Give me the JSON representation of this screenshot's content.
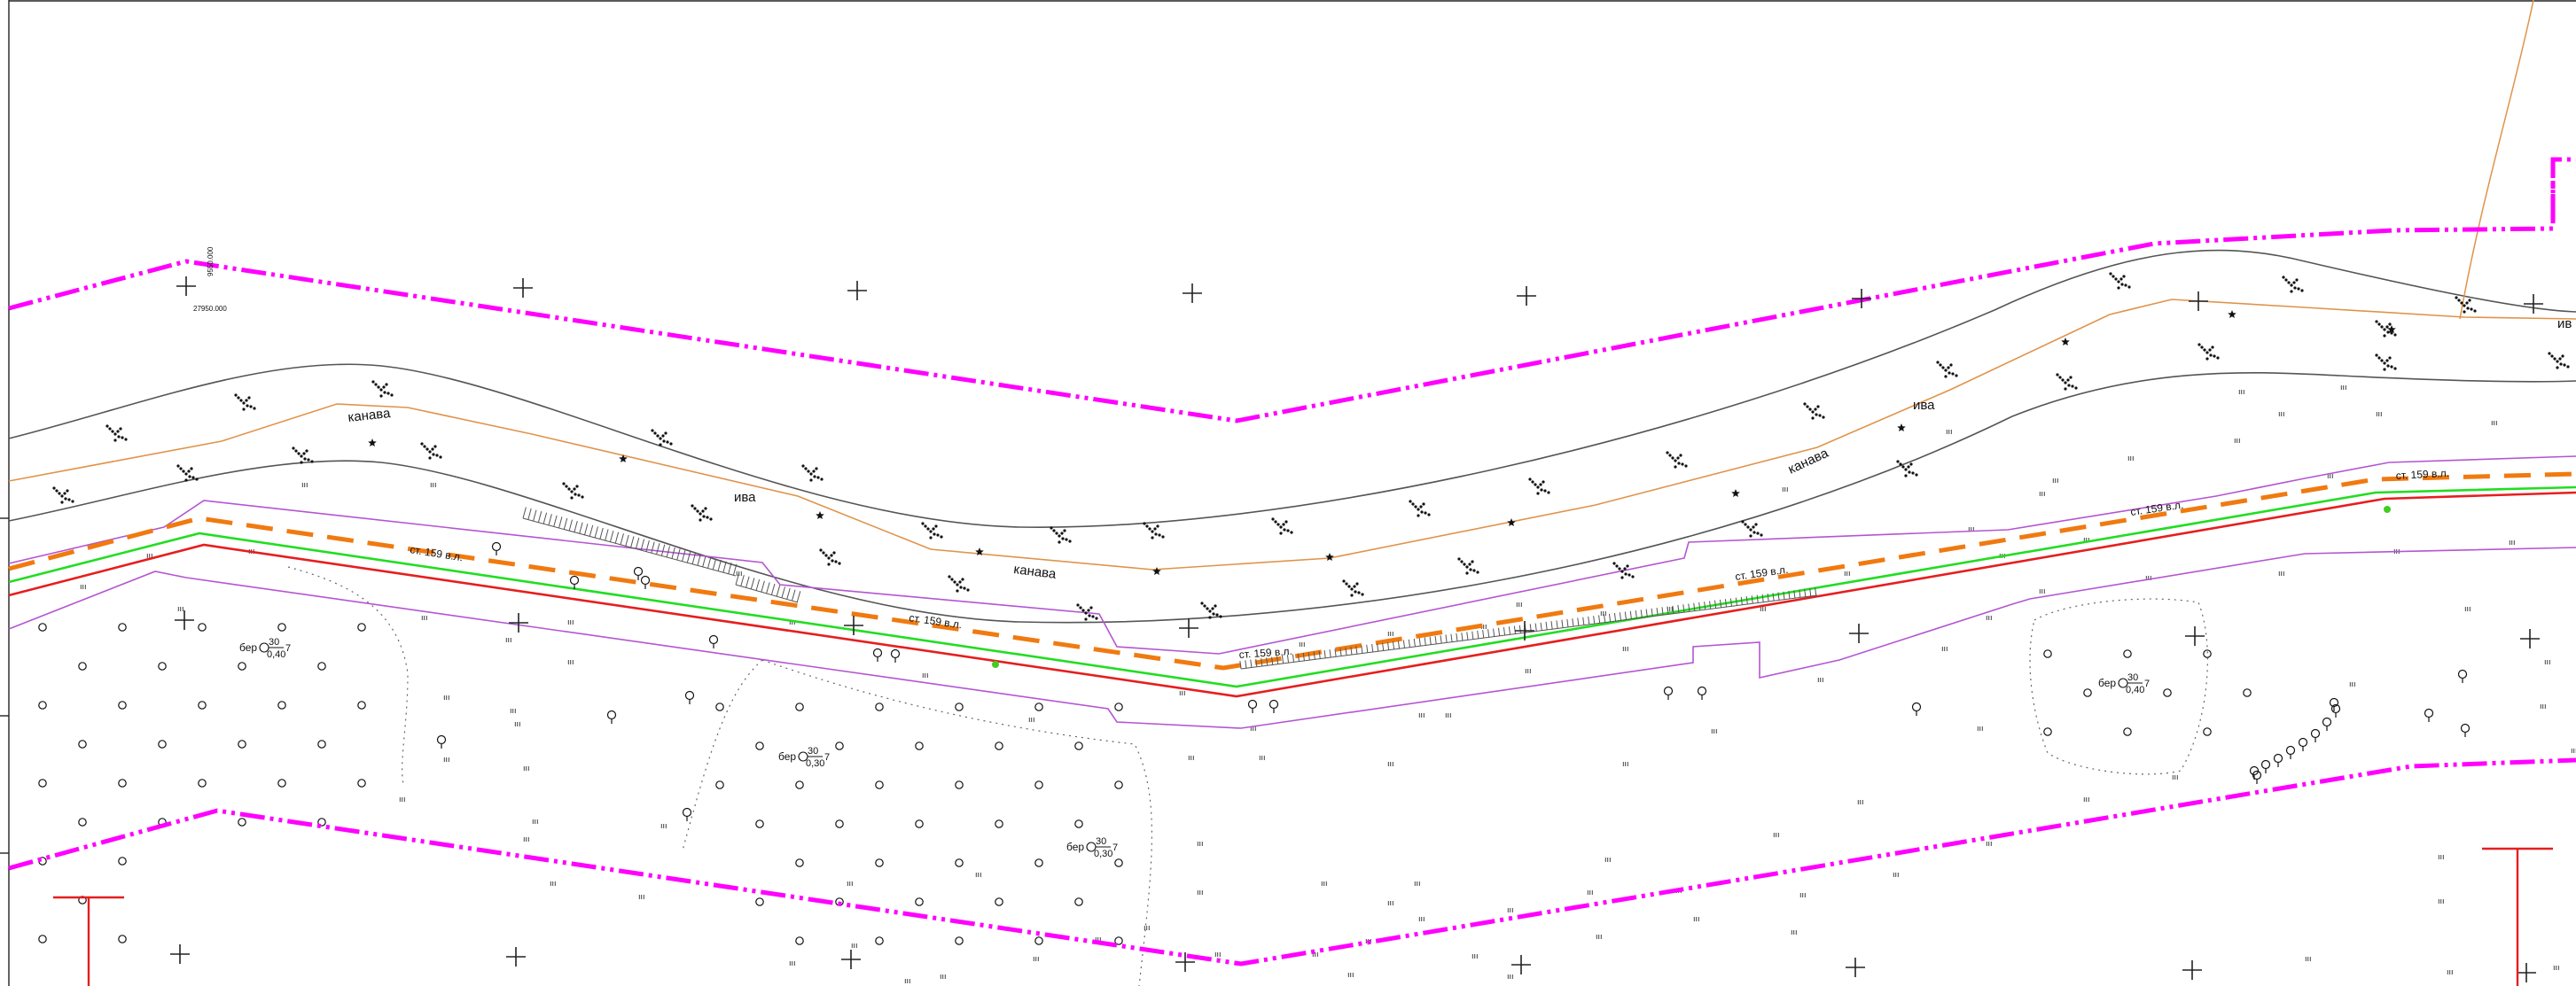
{
  "map": {
    "coordinate_labels": {
      "grid_x": "27950.000",
      "grid_y_rotated": "9550.000"
    },
    "water_features": {
      "ditch_label": "канава",
      "ditch_count": 3
    },
    "tree_labels": {
      "willow": "ива",
      "willow_count": 3,
      "willow_edge_fragment": "ив"
    },
    "road_labels": {
      "text": "ст. 159 в.л.",
      "count": 6
    },
    "bush_labels": [
      {
        "prefix": "бер",
        "numerator": "30",
        "denominator": "0,40",
        "suffix": "7"
      },
      {
        "prefix": "бер",
        "numerator": "30",
        "denominator": "0,30",
        "suffix": "7"
      },
      {
        "prefix": "бер",
        "numerator": "30",
        "denominator": "0,30",
        "suffix": "7"
      },
      {
        "prefix": "бер",
        "numerator": "30",
        "denominator": "0,40",
        "suffix": "7"
      }
    ],
    "vegetation_mark": "ııı",
    "colors": {
      "boundary": "#ff00ff",
      "pipeline_dashed": "#f07a10",
      "road_edge_green": "#22dd22",
      "road_edge_red": "#e61e1e",
      "zone_outline": "#b455d2",
      "contour": "#555555",
      "ditch_line": "#e0934a",
      "frame": "#222222",
      "survey_marker": "#e61e1e"
    },
    "icons": {
      "grid_cross": "plus-cross",
      "tree": "deciduous-tree-symbol",
      "bush": "bush-circle-symbol",
      "conifer": "star-symbol",
      "sparse_shrub": "dot-cluster-symbol",
      "survey_marker": "red-t-marker"
    }
  }
}
